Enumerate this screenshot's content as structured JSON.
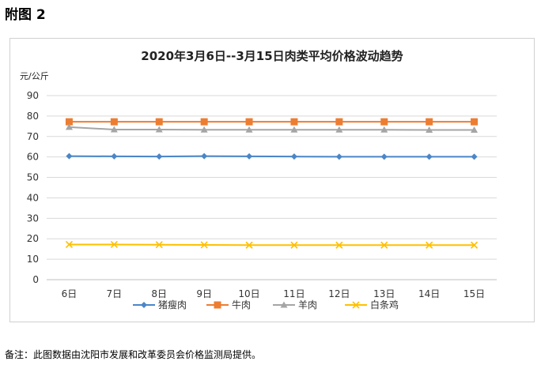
{
  "heading": "附图 2",
  "footnote": "备注：此图数据由沈阳市发展和改革委员会价格监测局提供。",
  "chart_data": {
    "type": "line",
    "title": "2020年3月6日--3月15日肉类平均价格波动趋势",
    "ylabel": "元/公斤",
    "xlabel": "",
    "categories": [
      "6日",
      "7日",
      "8日",
      "9日",
      "10日",
      "11日",
      "12日",
      "13日",
      "14日",
      "15日"
    ],
    "ylim": [
      0,
      90
    ],
    "yticks": [
      0,
      10,
      20,
      30,
      40,
      50,
      60,
      70,
      80,
      90
    ],
    "grid": true,
    "legend_position": "bottom",
    "series": [
      {
        "name": "猪瘦肉",
        "color": "#4a86c8",
        "marker": "diamond",
        "values": [
          60.4,
          60.3,
          60.2,
          60.4,
          60.3,
          60.2,
          60.1,
          60.1,
          60.1,
          60.1
        ]
      },
      {
        "name": "牛肉",
        "color": "#ed7d31",
        "marker": "square",
        "values": [
          77.2,
          77.2,
          77.2,
          77.2,
          77.2,
          77.2,
          77.2,
          77.2,
          77.2,
          77.2
        ]
      },
      {
        "name": "羊肉",
        "color": "#a5a5a5",
        "marker": "triangle",
        "values": [
          74.6,
          73.4,
          73.4,
          73.3,
          73.3,
          73.3,
          73.3,
          73.3,
          73.2,
          73.2
        ]
      },
      {
        "name": "白条鸡",
        "color": "#ffc000",
        "marker": "x",
        "values": [
          17.2,
          17.2,
          17.1,
          17.0,
          16.9,
          16.9,
          16.9,
          16.9,
          16.9,
          16.9
        ]
      }
    ]
  }
}
